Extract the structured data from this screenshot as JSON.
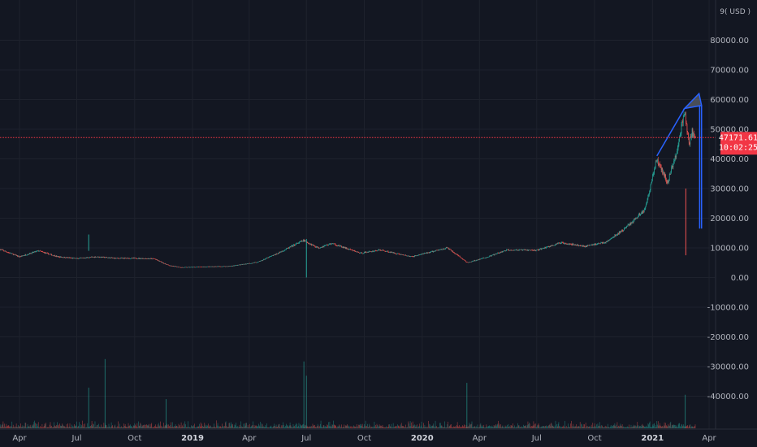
{
  "chart_data": {
    "type": "candlestick",
    "currency_label": "9( USD )",
    "y_ticks": [
      80000,
      70000,
      60000,
      50000,
      40000,
      30000,
      20000,
      10000,
      0,
      -10000,
      -20000,
      -30000,
      -40000
    ],
    "y_tick_labels": [
      "80000.00",
      "70000.00",
      "60000.00",
      "50000.00",
      "40000.00",
      "30000.00",
      "20000.00",
      "10000.00",
      "0.00",
      "-10000.00",
      "-20000.00",
      "-30000.00",
      "-40000.00"
    ],
    "ylim": [
      -47000,
      90000
    ],
    "x_range": [
      "2018-03-01",
      "2021-04-10"
    ],
    "x_ticks": [
      {
        "date": "2018-04-01",
        "label": "Apr",
        "bold": false
      },
      {
        "date": "2018-07-01",
        "label": "Jul",
        "bold": false
      },
      {
        "date": "2018-10-01",
        "label": "Oct",
        "bold": false
      },
      {
        "date": "2019-01-01",
        "label": "2019",
        "bold": true
      },
      {
        "date": "2019-04-01",
        "label": "Apr",
        "bold": false
      },
      {
        "date": "2019-07-01",
        "label": "Jul",
        "bold": false
      },
      {
        "date": "2019-10-01",
        "label": "Oct",
        "bold": false
      },
      {
        "date": "2020-01-01",
        "label": "2020",
        "bold": true
      },
      {
        "date": "2020-04-01",
        "label": "Apr",
        "bold": false
      },
      {
        "date": "2020-07-01",
        "label": "Jul",
        "bold": false
      },
      {
        "date": "2020-10-01",
        "label": "Oct",
        "bold": false
      },
      {
        "date": "2021-01-01",
        "label": "2021",
        "bold": true
      },
      {
        "date": "2021-04-01",
        "label": "Apr",
        "bold": false
      }
    ],
    "price_anchors": [
      [
        "2018-03-01",
        9500
      ],
      [
        "2018-04-01",
        7000
      ],
      [
        "2018-05-01",
        9000
      ],
      [
        "2018-06-01",
        7000
      ],
      [
        "2018-07-01",
        6400
      ],
      [
        "2018-08-01",
        7000
      ],
      [
        "2018-09-01",
        6500
      ],
      [
        "2018-10-01",
        6500
      ],
      [
        "2018-11-01",
        6300
      ],
      [
        "2018-11-25",
        4000
      ],
      [
        "2018-12-15",
        3400
      ],
      [
        "2019-01-15",
        3600
      ],
      [
        "2019-03-01",
        3800
      ],
      [
        "2019-04-15",
        5200
      ],
      [
        "2019-05-15",
        8000
      ],
      [
        "2019-06-26",
        12500
      ],
      [
        "2019-07-20",
        10000
      ],
      [
        "2019-08-10",
        11500
      ],
      [
        "2019-09-25",
        8200
      ],
      [
        "2019-10-26",
        9300
      ],
      [
        "2019-12-15",
        7000
      ],
      [
        "2020-02-10",
        10000
      ],
      [
        "2020-03-13",
        5000
      ],
      [
        "2020-04-15",
        7000
      ],
      [
        "2020-05-15",
        9300
      ],
      [
        "2020-07-01",
        9200
      ],
      [
        "2020-08-10",
        11800
      ],
      [
        "2020-09-15",
        10500
      ],
      [
        "2020-10-20",
        12000
      ],
      [
        "2020-11-15",
        16000
      ],
      [
        "2020-12-01",
        19000
      ],
      [
        "2020-12-20",
        23000
      ],
      [
        "2021-01-08",
        40000
      ],
      [
        "2021-01-25",
        32000
      ],
      [
        "2021-02-08",
        42000
      ],
      [
        "2021-02-21",
        56000
      ],
      [
        "2021-02-28",
        45000
      ],
      [
        "2021-03-05",
        49000
      ],
      [
        "2021-03-10",
        46000
      ]
    ],
    "volume_spikes": [
      [
        "2018-07-20",
        13000
      ],
      [
        "2018-11-20",
        41000
      ],
      [
        "2019-06-27",
        24000
      ],
      [
        "2018-08-15",
        25000
      ],
      [
        "2020-03-12",
        15000
      ],
      [
        "2019-07-01",
        18000
      ],
      [
        "2021-02-22",
        10000
      ]
    ],
    "price_spikes": [
      {
        "date": "2018-07-20",
        "high": 14500,
        "low": 9000,
        "color": "#26a69a"
      },
      {
        "date": "2019-07-01",
        "high": 13000,
        "low": 0,
        "color": "#26a69a"
      },
      {
        "date": "2021-02-23",
        "high": 30000,
        "low": 7500,
        "color": "#ef5350"
      }
    ],
    "current_price": 47171.61,
    "current_price_label": "47171.61",
    "countdown_label": "10:02:25",
    "drawing_trendline": [
      [
        "2021-01-08",
        41000
      ],
      [
        "2021-02-21",
        57000
      ]
    ],
    "drawing_triangle": [
      [
        "2021-02-21",
        57000
      ],
      [
        "2021-03-16",
        62000
      ],
      [
        "2021-03-20",
        58000
      ]
    ],
    "drawing_verticals": [
      {
        "date": "2021-03-17",
        "top": 58000,
        "bottom": 16500
      },
      {
        "date": "2021-03-20",
        "top": 58000,
        "bottom": 16500
      }
    ],
    "colors": {
      "up": "#26a69a",
      "down": "#ef5350",
      "drawing": "#2962ff",
      "current_price": "#f23645",
      "background": "#131722"
    }
  }
}
